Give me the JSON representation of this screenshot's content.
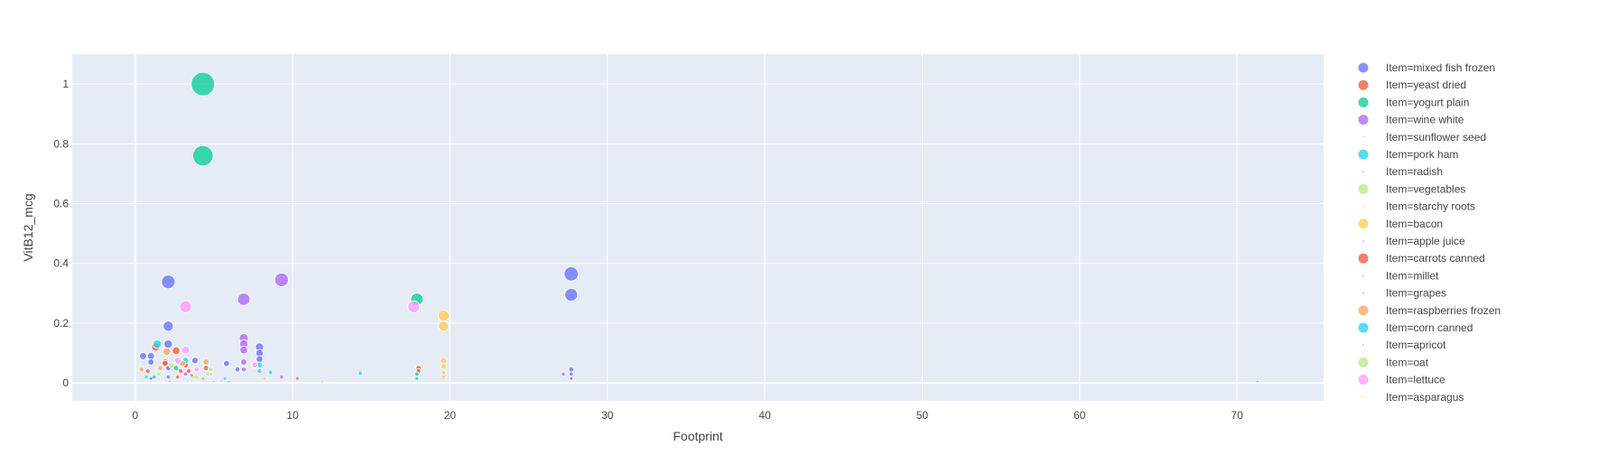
{
  "chart_data": {
    "type": "scatter",
    "title": "",
    "xlabel": "Footprint",
    "ylabel": "VitB12_mcg",
    "xlim": [
      -4,
      75.5
    ],
    "ylim": [
      -0.06,
      1.1
    ],
    "x_ticks": [
      0,
      10,
      20,
      30,
      40,
      50,
      60,
      70
    ],
    "y_ticks": [
      0,
      0.2,
      0.4,
      0.6,
      0.8,
      1
    ],
    "grid": true,
    "legend_position": "right",
    "colors": {
      "plot_bg": "#e5ecf6",
      "grid": "#ffffff",
      "text": "#444444"
    },
    "series": [
      {
        "name": "Item=mixed fish frozen",
        "color": "#636efa",
        "points": [
          [
            27.7,
            0.365
          ],
          [
            27.7,
            0.295
          ],
          [
            2.1,
            0.338
          ],
          [
            2.1,
            0.19
          ],
          [
            2.1,
            0.13
          ],
          [
            7.9,
            0.12
          ],
          [
            7.9,
            0.1
          ],
          [
            7.9,
            0.08
          ],
          [
            1.0,
            0.09
          ],
          [
            0.5,
            0.09
          ],
          [
            1.0,
            0.07
          ],
          [
            2.1,
            0.05
          ],
          [
            3.8,
            0.075
          ],
          [
            5.8,
            0.065
          ],
          [
            6.5,
            0.045
          ],
          [
            27.7,
            0.045
          ],
          [
            27.7,
            0.03
          ],
          [
            27.7,
            0.015
          ],
          [
            2.1,
            0.02
          ],
          [
            1.0,
            0.015
          ]
        ]
      },
      {
        "name": "Item=yeast dried",
        "color": "#ef553b",
        "points": [
          [
            2.6,
            0.108
          ],
          [
            1.3,
            0.12
          ],
          [
            1.9,
            0.07
          ],
          [
            3.2,
            0.06
          ],
          [
            4.5,
            0.05
          ],
          [
            18.0,
            0.05
          ],
          [
            18.0,
            0.04
          ],
          [
            10.3,
            0.015
          ],
          [
            0.8,
            0.04
          ],
          [
            2.9,
            0.04
          ],
          [
            3.6,
            0.025
          ]
        ]
      },
      {
        "name": "Item=yogurt plain",
        "color": "#00cc96",
        "points": [
          [
            4.3,
            1.0
          ],
          [
            4.3,
            0.76
          ],
          [
            17.9,
            0.28
          ],
          [
            2.6,
            0.05
          ],
          [
            17.9,
            0.03
          ],
          [
            17.9,
            0.015
          ],
          [
            1.2,
            0.02
          ]
        ]
      },
      {
        "name": "Item=wine white",
        "color": "#ab63fa",
        "points": [
          [
            9.3,
            0.345
          ],
          [
            6.9,
            0.28
          ],
          [
            6.9,
            0.15
          ],
          [
            6.9,
            0.13
          ],
          [
            6.9,
            0.11
          ],
          [
            6.9,
            0.07
          ],
          [
            6.9,
            0.045
          ],
          [
            27.2,
            0.03
          ],
          [
            9.3,
            0.02
          ],
          [
            3.2,
            0.03
          ]
        ]
      },
      {
        "name": "Item=sunflower seed",
        "color": "#ffa15a",
        "points": [
          [
            4.3,
            0.015
          ],
          [
            11.9,
            0.003
          ]
        ]
      },
      {
        "name": "Item=pork ham",
        "color": "#19d3f3",
        "points": [
          [
            1.4,
            0.13
          ],
          [
            3.2,
            0.075
          ],
          [
            14.3,
            0.033
          ],
          [
            7.9,
            0.04
          ],
          [
            0.7,
            0.02
          ]
        ]
      },
      {
        "name": "Item=radish",
        "color": "#ff6692",
        "points": [
          [
            5.0,
            0.005
          ]
        ]
      },
      {
        "name": "Item=vegetables",
        "color": "#b6e880",
        "points": [
          [
            2.3,
            0.06
          ],
          [
            4.8,
            0.045
          ],
          [
            3.7,
            0.02
          ]
        ]
      },
      {
        "name": "Item=starchy roots",
        "color": "#ff97ff",
        "points": [
          [
            5.5,
            0.008
          ]
        ]
      },
      {
        "name": "Item=bacon",
        "color": "#fecb52",
        "points": [
          [
            19.6,
            0.225
          ],
          [
            19.6,
            0.19
          ],
          [
            19.6,
            0.075
          ],
          [
            19.6,
            0.055
          ],
          [
            19.6,
            0.035
          ],
          [
            19.6,
            0.02
          ],
          [
            3.9,
            0.02
          ],
          [
            8.2,
            0.015
          ],
          [
            4.8,
            0.03
          ]
        ]
      },
      {
        "name": "Item=apple juice",
        "color": "#636efa",
        "points": [
          [
            71.3,
            0.005
          ]
        ]
      },
      {
        "name": "Item=carrots canned",
        "color": "#ef553b",
        "points": [
          [
            1.9,
            0.065
          ],
          [
            3.4,
            0.04
          ],
          [
            2.7,
            0.02
          ]
        ]
      },
      {
        "name": "Item=millet",
        "color": "#00cc96",
        "points": [
          [
            5.9,
            0.004
          ]
        ]
      },
      {
        "name": "Item=grapes",
        "color": "#ab63fa",
        "points": [
          [
            2.2,
            0.005
          ]
        ]
      },
      {
        "name": "Item=raspberries frozen",
        "color": "#ffa15a",
        "points": [
          [
            2.0,
            0.105
          ],
          [
            4.5,
            0.07
          ],
          [
            1.6,
            0.05
          ],
          [
            3.0,
            0.065
          ],
          [
            0.4,
            0.045
          ]
        ]
      },
      {
        "name": "Item=corn canned",
        "color": "#19d3f3",
        "points": [
          [
            8.6,
            0.035
          ],
          [
            7.9,
            0.06
          ],
          [
            5.7,
            0.015
          ]
        ]
      },
      {
        "name": "Item=apricot",
        "color": "#ff6692",
        "points": [
          [
            6.0,
            0.005
          ]
        ]
      },
      {
        "name": "Item=oat",
        "color": "#b6e880",
        "points": [
          [
            1.5,
            0.03
          ],
          [
            4.6,
            0.03
          ]
        ]
      },
      {
        "name": "Item=lettuce",
        "color": "#ff97ff",
        "points": [
          [
            3.2,
            0.255
          ],
          [
            17.7,
            0.255
          ],
          [
            3.2,
            0.11
          ],
          [
            7.6,
            0.06
          ],
          [
            2.7,
            0.075
          ],
          [
            3.9,
            0.045
          ]
        ]
      },
      {
        "name": "Item=asparagus",
        "color": "#fecb52",
        "points": [
          [
            3.6,
            0.006
          ]
        ]
      }
    ]
  }
}
